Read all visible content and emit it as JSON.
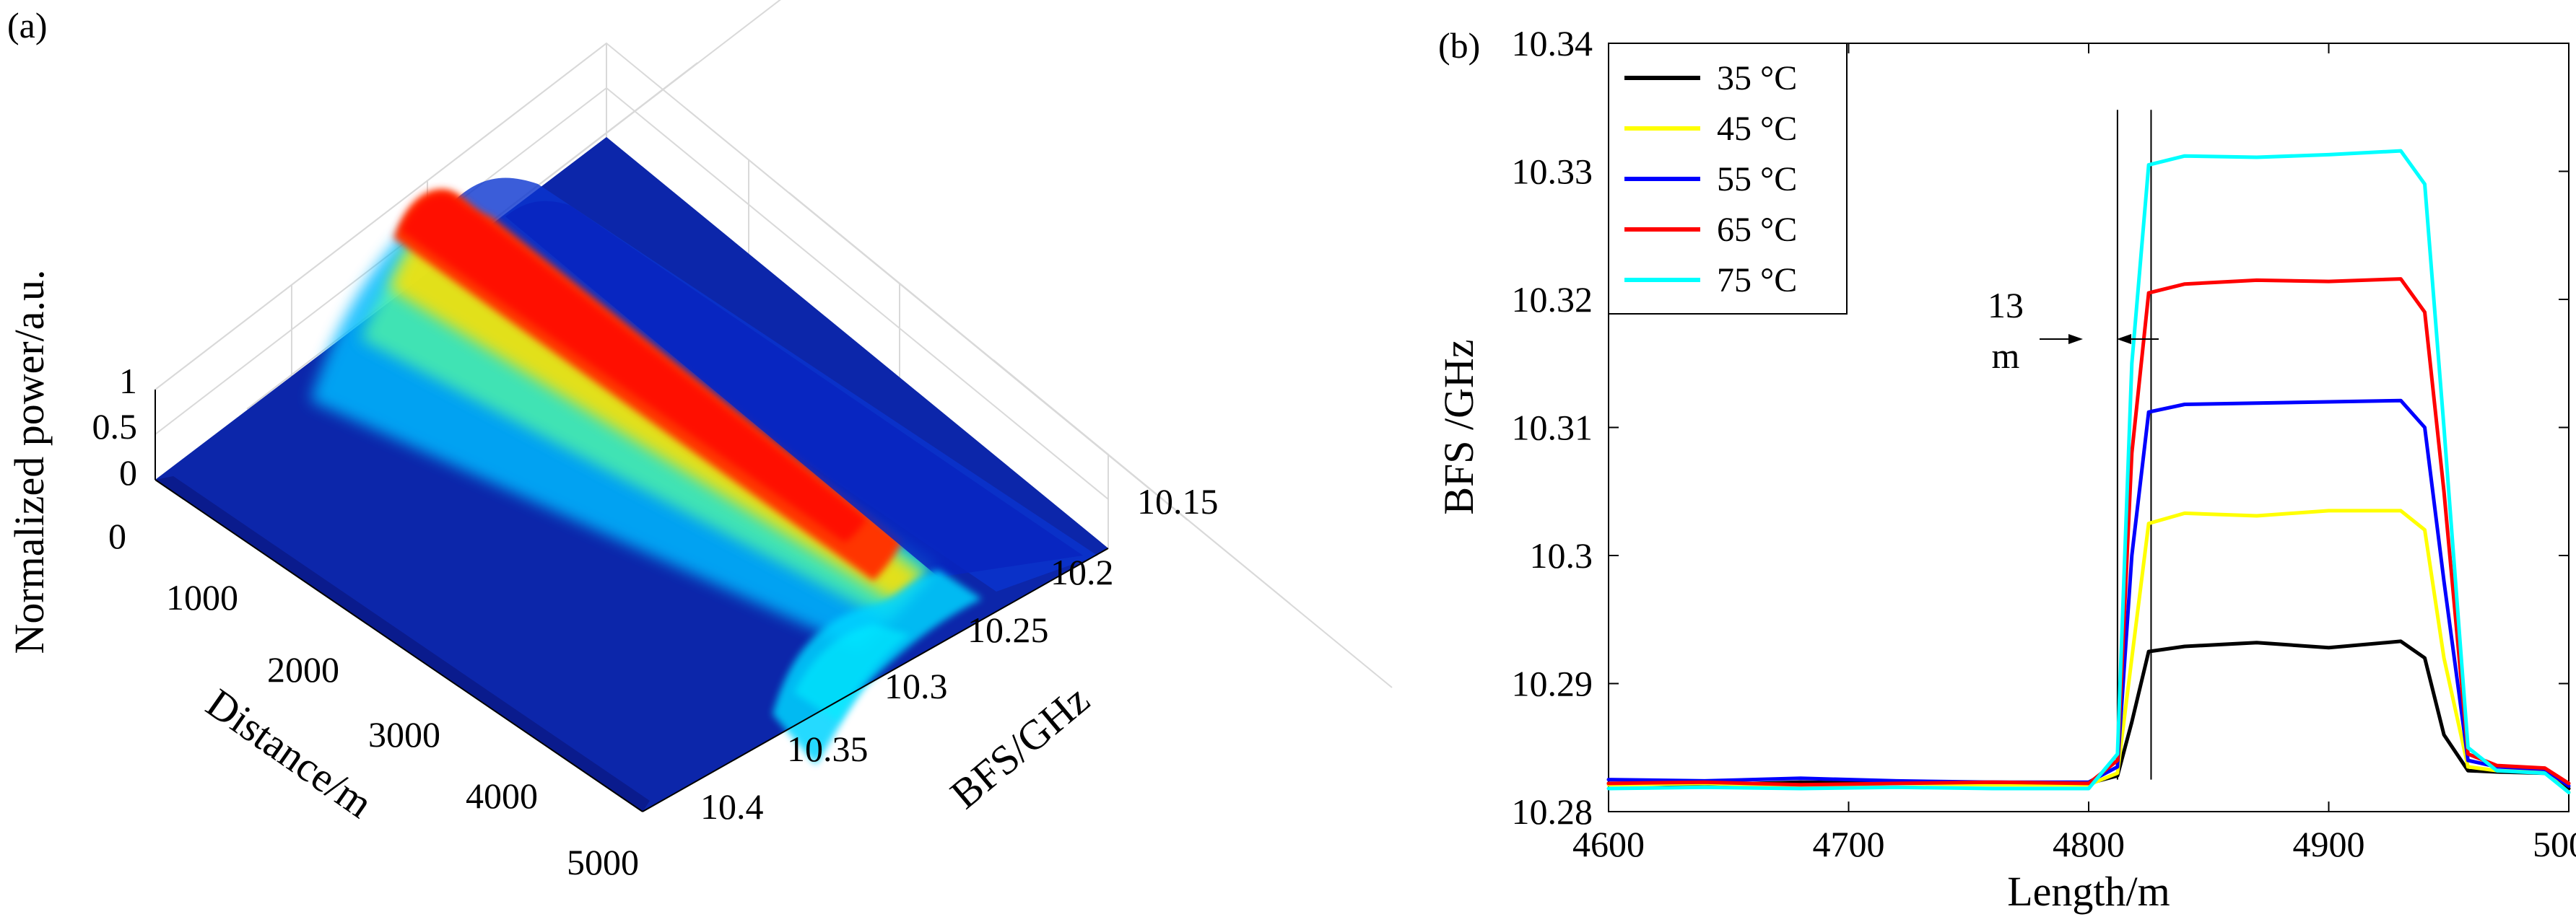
{
  "panels": {
    "a": {
      "label": "(a)"
    },
    "b": {
      "label": "(b)"
    }
  },
  "colors": {
    "c35": "#000000",
    "c45": "#ffff00",
    "c55": "#0000ff",
    "c65": "#ff0000",
    "c75": "#00ffff"
  },
  "chart_data": [
    {
      "type": "surface3d",
      "panel": "(a)",
      "title": "",
      "zlabel": "Normalized power/a.u.",
      "xlabel": "Distance/m",
      "ylabel": "BFS/GHz",
      "z_ticks": [
        "0",
        "0.5",
        "1"
      ],
      "z_range": [
        0,
        1
      ],
      "x_ticks": [
        "0",
        "1000",
        "2000",
        "3000",
        "4000",
        "5000"
      ],
      "x_range": [
        0,
        5000
      ],
      "y_ticks": [
        "10.15",
        "10.2",
        "10.25",
        "10.3",
        "10.35",
        "10.4"
      ],
      "y_range": [
        10.15,
        10.4
      ],
      "colormap": "jet",
      "peak_bfs_ghz": 10.282,
      "heated_section_m": [
        4820,
        4960
      ],
      "heated_peak_bfs_ghz": 10.33
    },
    {
      "type": "line",
      "panel": "(b)",
      "title": "",
      "xlabel": "Length/m",
      "ylabel": "BFS /GHz",
      "xlim": [
        4600,
        5000
      ],
      "ylim": [
        10.28,
        10.34
      ],
      "x_ticks": [
        "4600",
        "4700",
        "4800",
        "4900",
        "5000"
      ],
      "y_ticks": [
        "10.28",
        "10.29",
        "10.3",
        "10.31",
        "10.32",
        "10.33",
        "10.34"
      ],
      "legend_position": "top-left",
      "series": [
        {
          "name": "35 °C",
          "color": "#000000",
          "plateau": 10.293,
          "x": [
            4600,
            4640,
            4680,
            4720,
            4760,
            4800,
            4812,
            4818,
            4825,
            4840,
            4870,
            4900,
            4930,
            4940,
            4948,
            4958,
            4970,
            4990,
            5000
          ],
          "y": [
            10.2822,
            10.2821,
            10.2823,
            10.2822,
            10.2823,
            10.2822,
            10.2828,
            10.287,
            10.2925,
            10.2929,
            10.2932,
            10.2928,
            10.2933,
            10.292,
            10.286,
            10.2832,
            10.2831,
            10.283,
            10.2818
          ]
        },
        {
          "name": "45 °C",
          "color": "#ffff00",
          "plateau": 10.3035,
          "x": [
            4600,
            4640,
            4680,
            4720,
            4760,
            4800,
            4812,
            4818,
            4825,
            4840,
            4870,
            4900,
            4930,
            4940,
            4948,
            4958,
            4970,
            4990,
            5000
          ],
          "y": [
            10.2821,
            10.2822,
            10.282,
            10.2822,
            10.2821,
            10.2821,
            10.283,
            10.292,
            10.3025,
            10.3033,
            10.3031,
            10.3035,
            10.3035,
            10.302,
            10.292,
            10.2835,
            10.2832,
            10.2831,
            10.2815
          ]
        },
        {
          "name": "55 °C",
          "color": "#0000ff",
          "plateau": 10.312,
          "x": [
            4600,
            4640,
            4680,
            4720,
            4760,
            4800,
            4812,
            4818,
            4825,
            4840,
            4870,
            4900,
            4930,
            4940,
            4948,
            4958,
            4970,
            4990,
            5000
          ],
          "y": [
            10.2825,
            10.2824,
            10.2826,
            10.2824,
            10.2823,
            10.2823,
            10.2835,
            10.3,
            10.3112,
            10.3118,
            10.3119,
            10.312,
            10.3121,
            10.31,
            10.298,
            10.284,
            10.2835,
            10.2833,
            10.282
          ]
        },
        {
          "name": "65 °C",
          "color": "#ff0000",
          "plateau": 10.3215,
          "x": [
            4600,
            4640,
            4680,
            4720,
            4760,
            4800,
            4812,
            4818,
            4825,
            4840,
            4870,
            4900,
            4930,
            4940,
            4948,
            4958,
            4970,
            4990,
            5000
          ],
          "y": [
            10.2822,
            10.2823,
            10.2821,
            10.2822,
            10.2823,
            10.2822,
            10.284,
            10.308,
            10.3205,
            10.3212,
            10.3215,
            10.3214,
            10.3216,
            10.319,
            10.305,
            10.2845,
            10.2836,
            10.2834,
            10.2822
          ]
        },
        {
          "name": "75 °C",
          "color": "#00ffff",
          "plateau": 10.3315,
          "x": [
            4600,
            4640,
            4680,
            4720,
            4760,
            4800,
            4812,
            4818,
            4825,
            4840,
            4870,
            4900,
            4930,
            4940,
            4948,
            4958,
            4970,
            4990,
            5000
          ],
          "y": [
            10.2818,
            10.2819,
            10.2818,
            10.2819,
            10.2818,
            10.2818,
            10.2845,
            10.315,
            10.3305,
            10.3312,
            10.3311,
            10.3313,
            10.3316,
            10.329,
            10.31,
            10.285,
            10.2832,
            10.283,
            10.2815
          ]
        }
      ],
      "vlines": [
        4812,
        4826
      ],
      "annotation": {
        "line1": "13",
        "line2": "m"
      }
    }
  ]
}
